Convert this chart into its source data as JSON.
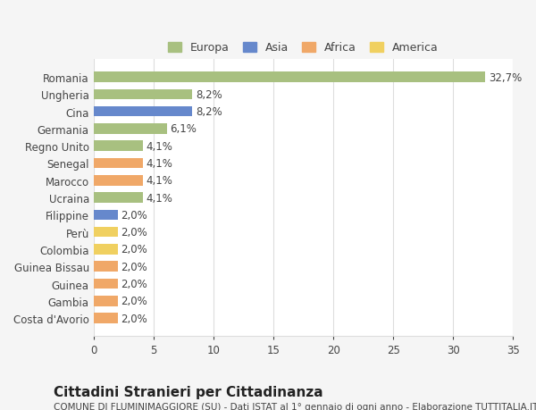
{
  "categories": [
    "Costa d'Avorio",
    "Gambia",
    "Guinea",
    "Guinea Bissau",
    "Colombia",
    "Perù",
    "Filippine",
    "Ucraina",
    "Marocco",
    "Senegal",
    "Regno Unito",
    "Germania",
    "Cina",
    "Ungheria",
    "Romania"
  ],
  "values": [
    2.0,
    2.0,
    2.0,
    2.0,
    2.0,
    2.0,
    2.0,
    4.1,
    4.1,
    4.1,
    4.1,
    6.1,
    8.2,
    8.2,
    32.7
  ],
  "bar_colors": [
    "#f0a868",
    "#f0a868",
    "#f0a868",
    "#f0a868",
    "#f0d060",
    "#f0d060",
    "#6688cc",
    "#a8c080",
    "#f0a868",
    "#f0a868",
    "#a8c080",
    "#a8c080",
    "#6688cc",
    "#a8c080",
    "#a8c080"
  ],
  "labels": [
    "2,0%",
    "2,0%",
    "2,0%",
    "2,0%",
    "2,0%",
    "2,0%",
    "2,0%",
    "4,1%",
    "4,1%",
    "4,1%",
    "4,1%",
    "6,1%",
    "8,2%",
    "8,2%",
    "32,7%"
  ],
  "legend_labels": [
    "Europa",
    "Asia",
    "Africa",
    "America"
  ],
  "legend_colors": [
    "#a8c080",
    "#6688cc",
    "#f0a868",
    "#f0d060"
  ],
  "title": "Cittadini Stranieri per Cittadinanza",
  "subtitle": "COMUNE DI FLUMINIMAGGIORE (SU) - Dati ISTAT al 1° gennaio di ogni anno - Elaborazione TUTTITALIA.IT",
  "xlim": [
    0,
    35
  ],
  "xticks": [
    0,
    5,
    10,
    15,
    20,
    25,
    30,
    35
  ],
  "background_color": "#f5f5f5",
  "plot_background": "#ffffff",
  "grid_color": "#dddddd",
  "text_color": "#444444",
  "bar_height": 0.6,
  "label_fontsize": 8.5,
  "tick_fontsize": 8.5,
  "title_fontsize": 11,
  "subtitle_fontsize": 7.5
}
